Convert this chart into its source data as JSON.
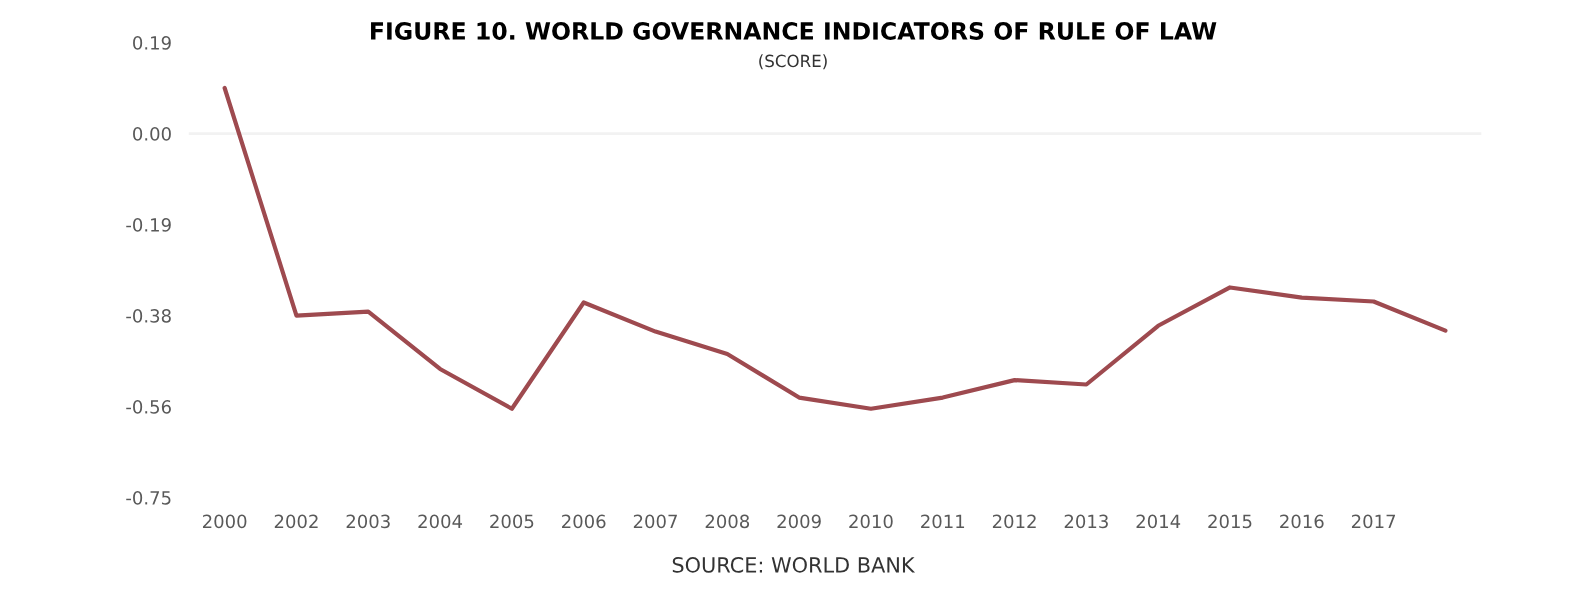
{
  "chart_data": {
    "type": "line",
    "title": "FIGURE 10. WORLD GOVERNANCE INDICATORS OF RULE OF LAW",
    "subtitle": "(SCORE)",
    "annotations": [
      "SOURCE: WORLD BANK"
    ],
    "categories": [
      "2000",
      "2002",
      "2003",
      "2004",
      "2005",
      "2006",
      "2007",
      "2008",
      "2009",
      "2010",
      "2011",
      "2012",
      "2013",
      "2014",
      "2015",
      "2016",
      "2017",
      null
    ],
    "series": [
      {
        "color": "#9e4a4f",
        "values": [
          0.094,
          -0.375,
          -0.367,
          -0.485,
          -0.567,
          -0.348,
          -0.408,
          -0.454,
          -0.544,
          -0.567,
          -0.544,
          -0.508,
          -0.517,
          -0.396,
          -0.317,
          -0.338,
          -0.346,
          -0.406
        ]
      }
    ],
    "ylim": [
      -0.75,
      0.1875
    ],
    "yticks": [
      {
        "value": 0.1875,
        "label": "0.19"
      },
      {
        "value": 0,
        "label": "0.00"
      },
      {
        "value": -0.1875,
        "label": "-0.19"
      },
      {
        "value": -0.375,
        "label": "-0.38"
      },
      {
        "value": -0.5625,
        "label": "-0.56"
      },
      {
        "value": -0.75,
        "label": "-0.75"
      }
    ],
    "ref_lines": [
      {
        "axis": "y",
        "value": 0,
        "color": "#f2f2f2"
      }
    ],
    "grid": false,
    "legend": false,
    "marker": "none",
    "line_style": "solid"
  }
}
